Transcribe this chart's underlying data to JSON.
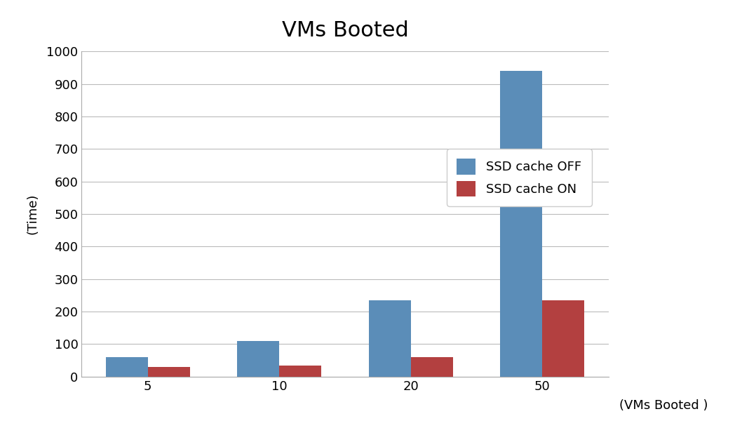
{
  "title": "VMs Booted",
  "categories": [
    5,
    10,
    20,
    50
  ],
  "ssd_off": [
    60,
    110,
    235,
    940
  ],
  "ssd_on": [
    30,
    35,
    60,
    235
  ],
  "legend_labels": [
    "SSD cache OFF",
    "SSD cache ON"
  ],
  "color_off": "#5B8DB8",
  "color_on": "#B34040",
  "ylabel": "(Time)",
  "xlabel": "(VMs Booted )",
  "ylim": [
    0,
    1000
  ],
  "yticks": [
    0,
    100,
    200,
    300,
    400,
    500,
    600,
    700,
    800,
    900,
    1000
  ],
  "title_fontsize": 22,
  "axis_label_fontsize": 13,
  "tick_fontsize": 13,
  "legend_fontsize": 13,
  "bar_width": 0.32,
  "background_color": "#ffffff"
}
